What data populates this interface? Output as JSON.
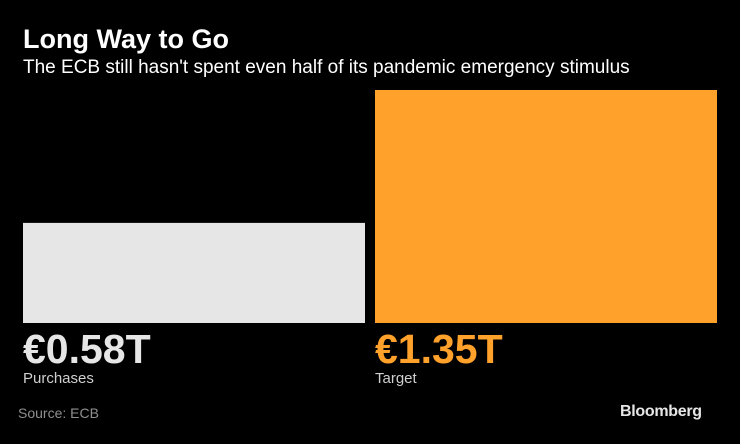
{
  "header": {
    "title": "Long Way to Go",
    "subtitle": "The ECB still hasn't spent even half of its pandemic emergency stimulus"
  },
  "chart_data": {
    "type": "bar",
    "categories": [
      "Purchases",
      "Target"
    ],
    "values": [
      0.58,
      1.35
    ],
    "value_labels": [
      "€0.58T",
      "€1.35T"
    ],
    "colors": [
      "#e6e6e6",
      "#ffa12a"
    ],
    "label_colors": [
      "#e6e6e6",
      "#ffa12a"
    ],
    "ylim": [
      0,
      1.35
    ],
    "grid": false,
    "legend": "none"
  },
  "footer": {
    "source": "Source: ECB",
    "brand": "Bloomberg"
  }
}
